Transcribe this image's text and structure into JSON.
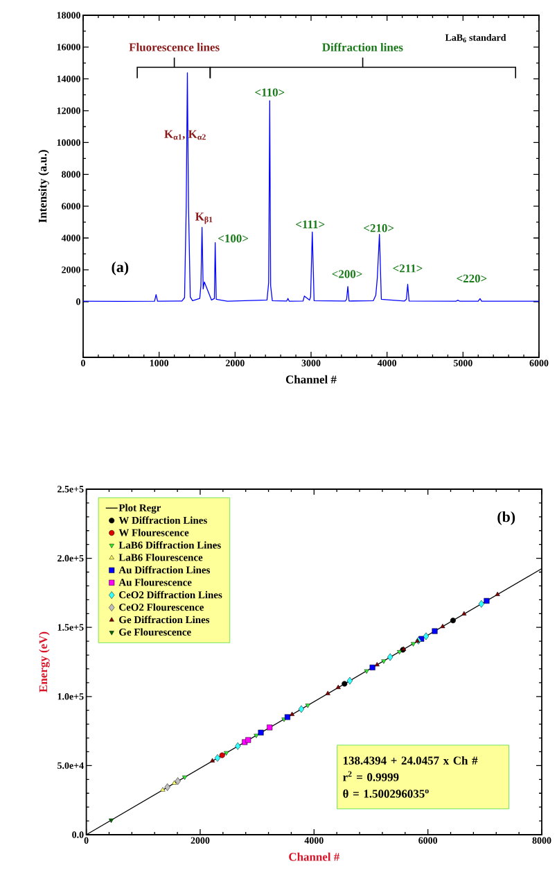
{
  "chart_data": [
    {
      "type": "line",
      "xlabel": "Channel #",
      "ylabel": "Intensity (a.u.)",
      "color": "#0000ff",
      "x": [
        0,
        500,
        940,
        960,
        980,
        1300,
        1335,
        1357,
        1372,
        1387,
        1410,
        1440,
        1535,
        1550,
        1565,
        1580,
        1595,
        1690,
        1728,
        1738,
        1752,
        1900,
        2420,
        2442,
        2456,
        2468,
        2490,
        2680,
        2696,
        2712,
        2895,
        2912,
        2980,
        2994,
        3016,
        3040,
        3450,
        3468,
        3484,
        3500,
        3820,
        3852,
        3872,
        3900,
        3925,
        4230,
        4255,
        4272,
        4290,
        4910,
        4932,
        4955,
        5200,
        5224,
        5245,
        6000
      ],
      "values": [
        30,
        20,
        30,
        440,
        30,
        40,
        250,
        6000,
        14380,
        6000,
        300,
        60,
        200,
        1000,
        4670,
        800,
        1240,
        100,
        200,
        3710,
        150,
        30,
        100,
        1200,
        12630,
        1000,
        60,
        40,
        200,
        30,
        40,
        350,
        100,
        300,
        4380,
        60,
        40,
        150,
        950,
        40,
        60,
        400,
        1500,
        4230,
        150,
        40,
        150,
        1090,
        40,
        30,
        90,
        30,
        30,
        190,
        30,
        30
      ],
      "xlim": [
        0,
        6000
      ],
      "ylim": [
        -3500,
        18000
      ],
      "xticks": [
        0,
        1000,
        2000,
        3000,
        4000,
        5000,
        6000
      ],
      "yticks": [
        0,
        2000,
        4000,
        6000,
        8000,
        10000,
        12000,
        14000,
        16000,
        18000
      ],
      "annotations": [
        "Fluorescence lines",
        "Diffraction lines",
        "LaB$_{6}$ standard",
        "(a)",
        "K$_{α1}$, K$_{α2}$",
        {
          "text": "K$_{β1}$",
          "x": 1565,
          "y": 4670
        },
        {
          "text": "<100>",
          "x": 1738,
          "y": 3710
        },
        {
          "text": "<110>",
          "x": 2456,
          "y": 12630
        },
        {
          "text": "<111>",
          "x": 3016,
          "y": 4380
        },
        {
          "text": "<200>",
          "x": 3484,
          "y": 950
        },
        {
          "text": "<210>",
          "x": 3900,
          "y": 4230
        },
        {
          "text": "<211>",
          "x": 4272,
          "y": 1090
        },
        {
          "text": "<220>",
          "x": 5224,
          "y": 190
        }
      ]
    },
    {
      "type": "scatter",
      "xlabel": "Channel #",
      "ylabel": "Energy (eV)",
      "legend": "top left",
      "xlim": [
        0,
        8000
      ],
      "ylim": [
        0,
        250000
      ],
      "xticks": [
        0,
        2000,
        4000,
        6000,
        8000
      ],
      "yticks": [
        {
          "value": 0,
          "label": "0.0"
        },
        {
          "value": 50000,
          "label": "5.0e+4"
        },
        {
          "value": 100000,
          "label": "1.0e+5"
        },
        {
          "value": 150000,
          "label": "1.5e+5"
        },
        {
          "value": 200000,
          "label": "2.0e+5"
        },
        {
          "value": 250000,
          "label": "2.5e+5"
        }
      ],
      "annotations": [
        "(b)",
        "138.4394 + 24.0457 x Ch #",
        "r$^{2}$ = 0.9999",
        "θ = 1.500296035$^{o}$"
      ],
      "series": [
        {
          "name": "Plot Regr",
          "type": "line",
          "color": "#000000",
          "marker": "none",
          "x": [
            0,
            8000
          ],
          "values": [
            0,
            192500
          ]
        },
        {
          "name": "W Diffraction Lines",
          "type": "scatter",
          "color": "#000000",
          "marker": "circle",
          "x": [
            4535,
            5560,
            6441
          ],
          "values": [
            109200,
            133800,
            155000
          ]
        },
        {
          "name": "W Flourescence",
          "type": "scatter",
          "color": "#dd0000",
          "marker": "circle",
          "x": [
            2386
          ],
          "values": [
            57500
          ]
        },
        {
          "name": "LaB6 Diffraction Lines",
          "type": "scatter",
          "color": "#33ee33",
          "marker": "triangle-down",
          "x": [
            1728,
            2459,
            2985,
            3472,
            3890,
            4923,
            5224,
            5500,
            5743
          ],
          "values": [
            41700,
            59300,
            71900,
            83600,
            93700,
            118500,
            125700,
            132400,
            138200
          ]
        },
        {
          "name": "LaB6 Flourescence",
          "type": "scatter",
          "color": "#ffff66",
          "marker": "triangle",
          "x": [
            1343,
            1546
          ],
          "values": [
            32400,
            37300
          ]
        },
        {
          "name": "Au Diffraction Lines",
          "type": "scatter",
          "color": "#0000ff",
          "marker": "square",
          "x": [
            3066,
            3533,
            5026,
            5885,
            6120,
            7032
          ],
          "values": [
            73900,
            85100,
            121000,
            141700,
            147300,
            169200
          ]
        },
        {
          "name": "Au Flourescence",
          "type": "scatter",
          "color": "#ff00ff",
          "marker": "square",
          "x": [
            2782,
            2843,
            3220
          ],
          "values": [
            67000,
            68500,
            77600
          ]
        },
        {
          "name": "CeO2 Diffraction Lines",
          "type": "scatter",
          "color": "#33ffff",
          "marker": "diamond",
          "x": [
            2304,
            2661,
            3776,
            4628,
            5337,
            5833,
            5967,
            6939
          ],
          "values": [
            55500,
            64100,
            90900,
            111400,
            128500,
            140400,
            143600,
            167000
          ]
        },
        {
          "name": "CeO2 Flourescence",
          "type": "scatter",
          "color": "#c0c0c0",
          "marker": "diamond",
          "x": [
            1424,
            1607
          ],
          "values": [
            34400,
            38800
          ]
        },
        {
          "name": "Ge Diffraction Lines",
          "type": "scatter",
          "color": "#800000",
          "marker": "triangle",
          "x": [
            2215,
            3614,
            4242,
            4425,
            5107,
            5574,
            5817,
            6259,
            6635,
            7223
          ],
          "values": [
            53400,
            87000,
            102100,
            106500,
            122900,
            134200,
            140000,
            150600,
            159700,
            173800
          ]
        },
        {
          "name": "Ge Flourescence",
          "type": "scatter",
          "color": "#006600",
          "marker": "triangle-down",
          "x": [
            437
          ],
          "values": [
            10600
          ]
        }
      ]
    }
  ]
}
